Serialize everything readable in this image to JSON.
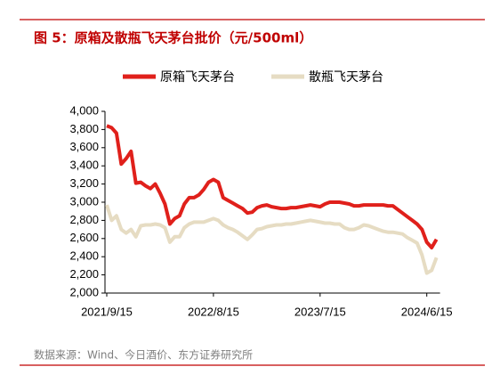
{
  "chart_data": {
    "type": "line",
    "title": "图 5：原箱及散瓶飞天茅台批价（元/500ml）",
    "source": "数据来源：Wind、今日酒价、东方证券研究所",
    "legend": "top",
    "categories": [
      "2021/9/15",
      null,
      null,
      null,
      null,
      null,
      null,
      null,
      null,
      null,
      null,
      null,
      null,
      null,
      null,
      null,
      null,
      null,
      null,
      null,
      null,
      null,
      "2022/8/15",
      null,
      null,
      null,
      null,
      null,
      null,
      null,
      null,
      null,
      null,
      null,
      null,
      null,
      null,
      null,
      null,
      null,
      null,
      null,
      null,
      null,
      "2023/7/15",
      null,
      null,
      null,
      null,
      null,
      null,
      null,
      null,
      null,
      null,
      null,
      null,
      null,
      null,
      null,
      null,
      null,
      null,
      null,
      null,
      null,
      "2024/6/15",
      null,
      null
    ],
    "ylim": [
      2000,
      4000
    ],
    "yticks": [
      {
        "value": 2000,
        "label": "2,000"
      },
      {
        "value": 2200,
        "label": "2,200"
      },
      {
        "value": 2400,
        "label": "2,400"
      },
      {
        "value": 2600,
        "label": "2,600"
      },
      {
        "value": 2800,
        "label": "2,800"
      },
      {
        "value": 3000,
        "label": "3,000"
      },
      {
        "value": 3200,
        "label": "3,200"
      },
      {
        "value": 3400,
        "label": "3,400"
      },
      {
        "value": 3600,
        "label": "3,600"
      },
      {
        "value": 3800,
        "label": "3,800"
      },
      {
        "value": 4000,
        "label": "4,000"
      }
    ],
    "grid": false,
    "series": [
      {
        "name": "原箱飞天茅台",
        "color": "#e0201b",
        "values": [
          3840,
          3820,
          3760,
          3420,
          3480,
          3560,
          3210,
          3220,
          3180,
          3150,
          3200,
          3100,
          2980,
          2760,
          2820,
          2850,
          2980,
          3050,
          3050,
          3080,
          3140,
          3220,
          3250,
          3220,
          3050,
          3020,
          2990,
          2960,
          2930,
          2880,
          2890,
          2940,
          2960,
          2970,
          2950,
          2940,
          2930,
          2930,
          2940,
          2940,
          2950,
          2960,
          2970,
          2960,
          2950,
          2980,
          3000,
          3000,
          3000,
          2990,
          2980,
          2960,
          2960,
          2970,
          2970,
          2970,
          2970,
          2970,
          2960,
          2960,
          2920,
          2880,
          2840,
          2800,
          2760,
          2700,
          2560,
          2500,
          2590
        ]
      },
      {
        "name": "散瓶飞天茅台",
        "color": "#e6dcc3",
        "values": [
          2970,
          2800,
          2850,
          2700,
          2660,
          2700,
          2620,
          2740,
          2750,
          2750,
          2760,
          2750,
          2720,
          2560,
          2620,
          2620,
          2720,
          2760,
          2780,
          2780,
          2780,
          2800,
          2820,
          2800,
          2750,
          2720,
          2700,
          2670,
          2630,
          2590,
          2640,
          2700,
          2710,
          2730,
          2740,
          2750,
          2750,
          2760,
          2760,
          2770,
          2780,
          2790,
          2800,
          2790,
          2780,
          2770,
          2770,
          2760,
          2760,
          2720,
          2700,
          2700,
          2720,
          2750,
          2740,
          2720,
          2700,
          2680,
          2670,
          2670,
          2660,
          2650,
          2610,
          2580,
          2550,
          2420,
          2220,
          2250,
          2390
        ]
      }
    ]
  }
}
